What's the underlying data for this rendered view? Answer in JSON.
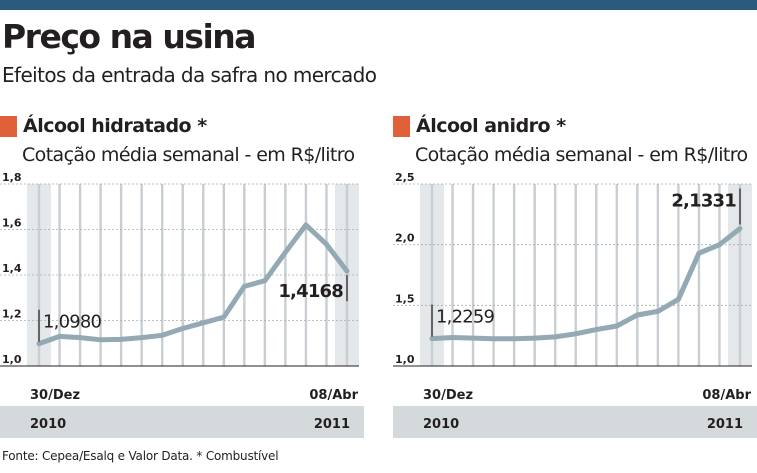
{
  "header": {
    "title": "Preço na usina",
    "subtitle": "Efeitos da entrada da safra no mercado"
  },
  "footer": {
    "source": "Fonte: Cepea/Esalq e Valor Data. * Combustível"
  },
  "colors": {
    "accent": "#e0603a",
    "line": "#93a9b3",
    "grid": "#c8ced2",
    "band": "#e5e8ea",
    "yearbar": "#d4d9dc",
    "topbar": "#2a5a7c"
  },
  "chart_data": [
    {
      "type": "line",
      "title": "Álcool hidratado *",
      "ylabel": "Cotação média semanal - em R$/litro",
      "x_start_label": "30/Dez",
      "x_end_label": "08/Abr",
      "year_start": "2010",
      "year_end": "2011",
      "ylim": [
        1.0,
        1.8
      ],
      "yticks": [
        "1,0",
        "1,2",
        "1,4",
        "1,6",
        "1,8"
      ],
      "weeks": 15,
      "values": [
        1.098,
        1.13,
        1.125,
        1.115,
        1.117,
        1.125,
        1.135,
        1.165,
        1.19,
        1.215,
        1.35,
        1.375,
        1.5,
        1.62,
        1.535,
        1.4168
      ],
      "first_label": "1,0980",
      "last_label": "1,4168"
    },
    {
      "type": "line",
      "title": "Álcool anidro *",
      "ylabel": "Cotação média semanal - em R$/litro",
      "x_start_label": "30/Dez",
      "x_end_label": "08/Abr",
      "year_start": "2010",
      "year_end": "2011",
      "ylim": [
        1.0,
        2.5
      ],
      "yticks": [
        "1,0",
        "1,5",
        "2,0",
        "2,5"
      ],
      "weeks": 15,
      "values": [
        1.2259,
        1.235,
        1.23,
        1.225,
        1.225,
        1.23,
        1.24,
        1.265,
        1.3,
        1.33,
        1.42,
        1.45,
        1.55,
        1.93,
        2.0,
        2.1331
      ],
      "first_label": "1,2259",
      "last_label": "2,1331"
    }
  ]
}
